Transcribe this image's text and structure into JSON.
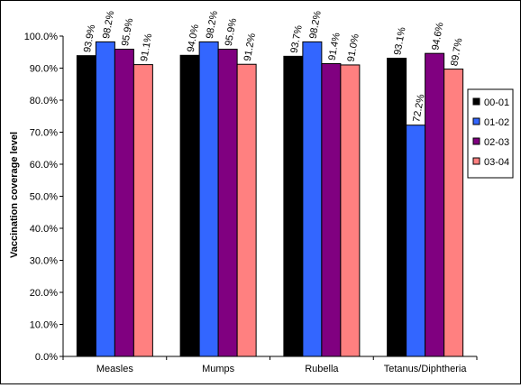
{
  "chart_data": {
    "type": "bar",
    "title": "",
    "xlabel": "",
    "ylabel": "Vaccination coverage level",
    "ylim": [
      0,
      100
    ],
    "y_ticks": [
      "0.0%",
      "10.0%",
      "20.0%",
      "30.0%",
      "40.0%",
      "50.0%",
      "60.0%",
      "70.0%",
      "80.0%",
      "90.0%",
      "100.0%"
    ],
    "grid": false,
    "legend_position": "right",
    "categories": [
      "Measles",
      "Mumps",
      "Rubella",
      "Tetanus/Diphtheria"
    ],
    "series": [
      {
        "name": "00-01",
        "color": "#000000",
        "values": [
          93.9,
          94.0,
          93.7,
          93.1
        ],
        "labels": [
          "93.9%",
          "94.0%",
          "93.7%",
          "93.1%"
        ]
      },
      {
        "name": "01-02",
        "color": "#3366FF",
        "values": [
          98.2,
          98.2,
          98.2,
          72.2
        ],
        "labels": [
          "98.2%",
          "98.2%",
          "98.2%",
          "72.2%"
        ]
      },
      {
        "name": "02-03",
        "color": "#800080",
        "values": [
          95.9,
          95.9,
          91.4,
          94.6
        ],
        "labels": [
          "95.9%",
          "95.9%",
          "91.4%",
          "94.6%"
        ]
      },
      {
        "name": "03-04",
        "color": "#FF8080",
        "values": [
          91.1,
          91.2,
          91.0,
          89.7
        ],
        "labels": [
          "91.1%",
          "91.2%",
          "91.0%",
          "89.7%"
        ]
      }
    ]
  }
}
